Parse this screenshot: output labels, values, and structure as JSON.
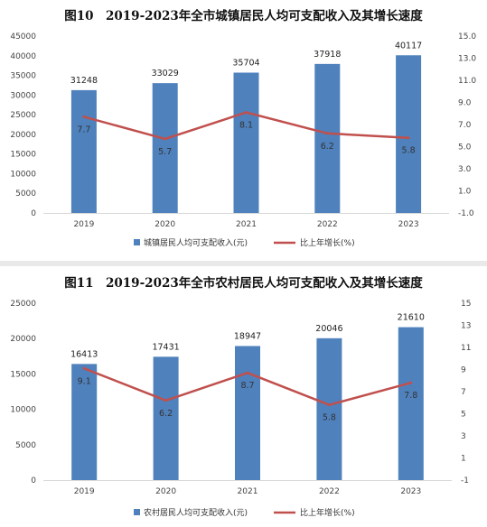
{
  "chart_data": [
    {
      "type": "bar",
      "title": "图10　2019-2023年全市城镇居民人均可支配收入及其增长速度",
      "categories": [
        "2019",
        "2020",
        "2021",
        "2022",
        "2023"
      ],
      "series": [
        {
          "name": "城镇居民人均可支配收入(元)",
          "type": "bar",
          "axis": "left",
          "values": [
            31248,
            33029,
            35704,
            37918,
            40117
          ],
          "color": "#4f81bd"
        },
        {
          "name": "比上年增长(%)",
          "type": "line",
          "axis": "right",
          "values": [
            7.7,
            5.7,
            8.1,
            6.2,
            5.8
          ],
          "color": "#c0504d"
        }
      ],
      "y_left": {
        "min": 0,
        "max": 45000,
        "step": 5000,
        "ticks": [
          "0",
          "5000",
          "10000",
          "15000",
          "20000",
          "25000",
          "30000",
          "35000",
          "40000",
          "45000"
        ]
      },
      "y_right": {
        "min": -1.0,
        "max": 15.0,
        "step": 2.0,
        "ticks": [
          "-1.0",
          "1.0",
          "3.0",
          "5.0",
          "7.0",
          "9.0",
          "11.0",
          "13.0",
          "15.0"
        ]
      },
      "grid": false,
      "legend_position": "bottom"
    },
    {
      "type": "bar",
      "title": "图11　2019-2023年全市农村居民人均可支配收入及其增长速度",
      "categories": [
        "2019",
        "2020",
        "2021",
        "2022",
        "2023"
      ],
      "series": [
        {
          "name": "农村居民人均可支配收入(元)",
          "type": "bar",
          "axis": "left",
          "values": [
            16413,
            17431,
            18947,
            20046,
            21610
          ],
          "color": "#4f81bd"
        },
        {
          "name": "比上年增长(%)",
          "type": "line",
          "axis": "right",
          "values": [
            9.1,
            6.2,
            8.7,
            5.8,
            7.8
          ],
          "color": "#c0504d"
        }
      ],
      "y_left": {
        "min": 0,
        "max": 25000,
        "step": 5000,
        "ticks": [
          "0",
          "5000",
          "10000",
          "15000",
          "20000",
          "25000"
        ]
      },
      "y_right": {
        "min": -1,
        "max": 15,
        "step": 2,
        "ticks": [
          "-1",
          "1",
          "3",
          "5",
          "7",
          "9",
          "11",
          "13",
          "15"
        ]
      },
      "grid": false,
      "legend_position": "bottom"
    }
  ]
}
